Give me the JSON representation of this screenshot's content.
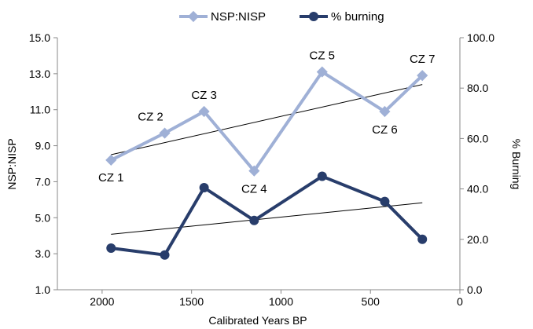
{
  "chart_data": {
    "type": "line",
    "xlabel": "Calibrated Years BP",
    "ylabel_left": "NSP:NISP",
    "ylabel_right": "% Burning",
    "x_range": [
      2250,
      0
    ],
    "x_reversed": true,
    "x_ticks": [
      2000,
      1500,
      1000,
      500,
      0
    ],
    "y_left_range": [
      1.0,
      15.0
    ],
    "y_left_ticks": [
      "1.0",
      "3.0",
      "5.0",
      "7.0",
      "9.0",
      "11.0",
      "13.0",
      "15.0"
    ],
    "y_right_range": [
      0.0,
      100.0
    ],
    "y_right_ticks": [
      "0.0",
      "20.0",
      "40.0",
      "60.0",
      "80.0",
      "100.0"
    ],
    "grid": false,
    "legend_position": "top",
    "series": [
      {
        "name": "NSP:NISP",
        "axis": "left",
        "color": "#9fb0d6",
        "marker": "diamond",
        "x": [
          1950,
          1650,
          1430,
          1150,
          770,
          420,
          210
        ],
        "values": [
          8.2,
          9.7,
          10.9,
          7.6,
          13.1,
          10.9,
          12.9
        ],
        "point_labels": [
          "CZ 1",
          "CZ 2",
          "CZ 3",
          "CZ 4",
          "CZ 5",
          "CZ 6",
          "CZ 7"
        ]
      },
      {
        "name": "% burning",
        "axis": "right",
        "color": "#283d6b",
        "marker": "circle",
        "x": [
          1950,
          1650,
          1430,
          1150,
          770,
          420,
          210
        ],
        "values": [
          16.5,
          13.8,
          40.5,
          27.5,
          45.0,
          35.0,
          20.0
        ]
      }
    ],
    "trendlines": [
      {
        "series": "NSP:NISP",
        "axis": "left",
        "x": [
          1950,
          210
        ],
        "values": [
          8.5,
          12.4
        ]
      },
      {
        "series": "% burning",
        "axis": "right",
        "x": [
          1950,
          210
        ],
        "values": [
          22.0,
          34.5
        ]
      }
    ]
  }
}
